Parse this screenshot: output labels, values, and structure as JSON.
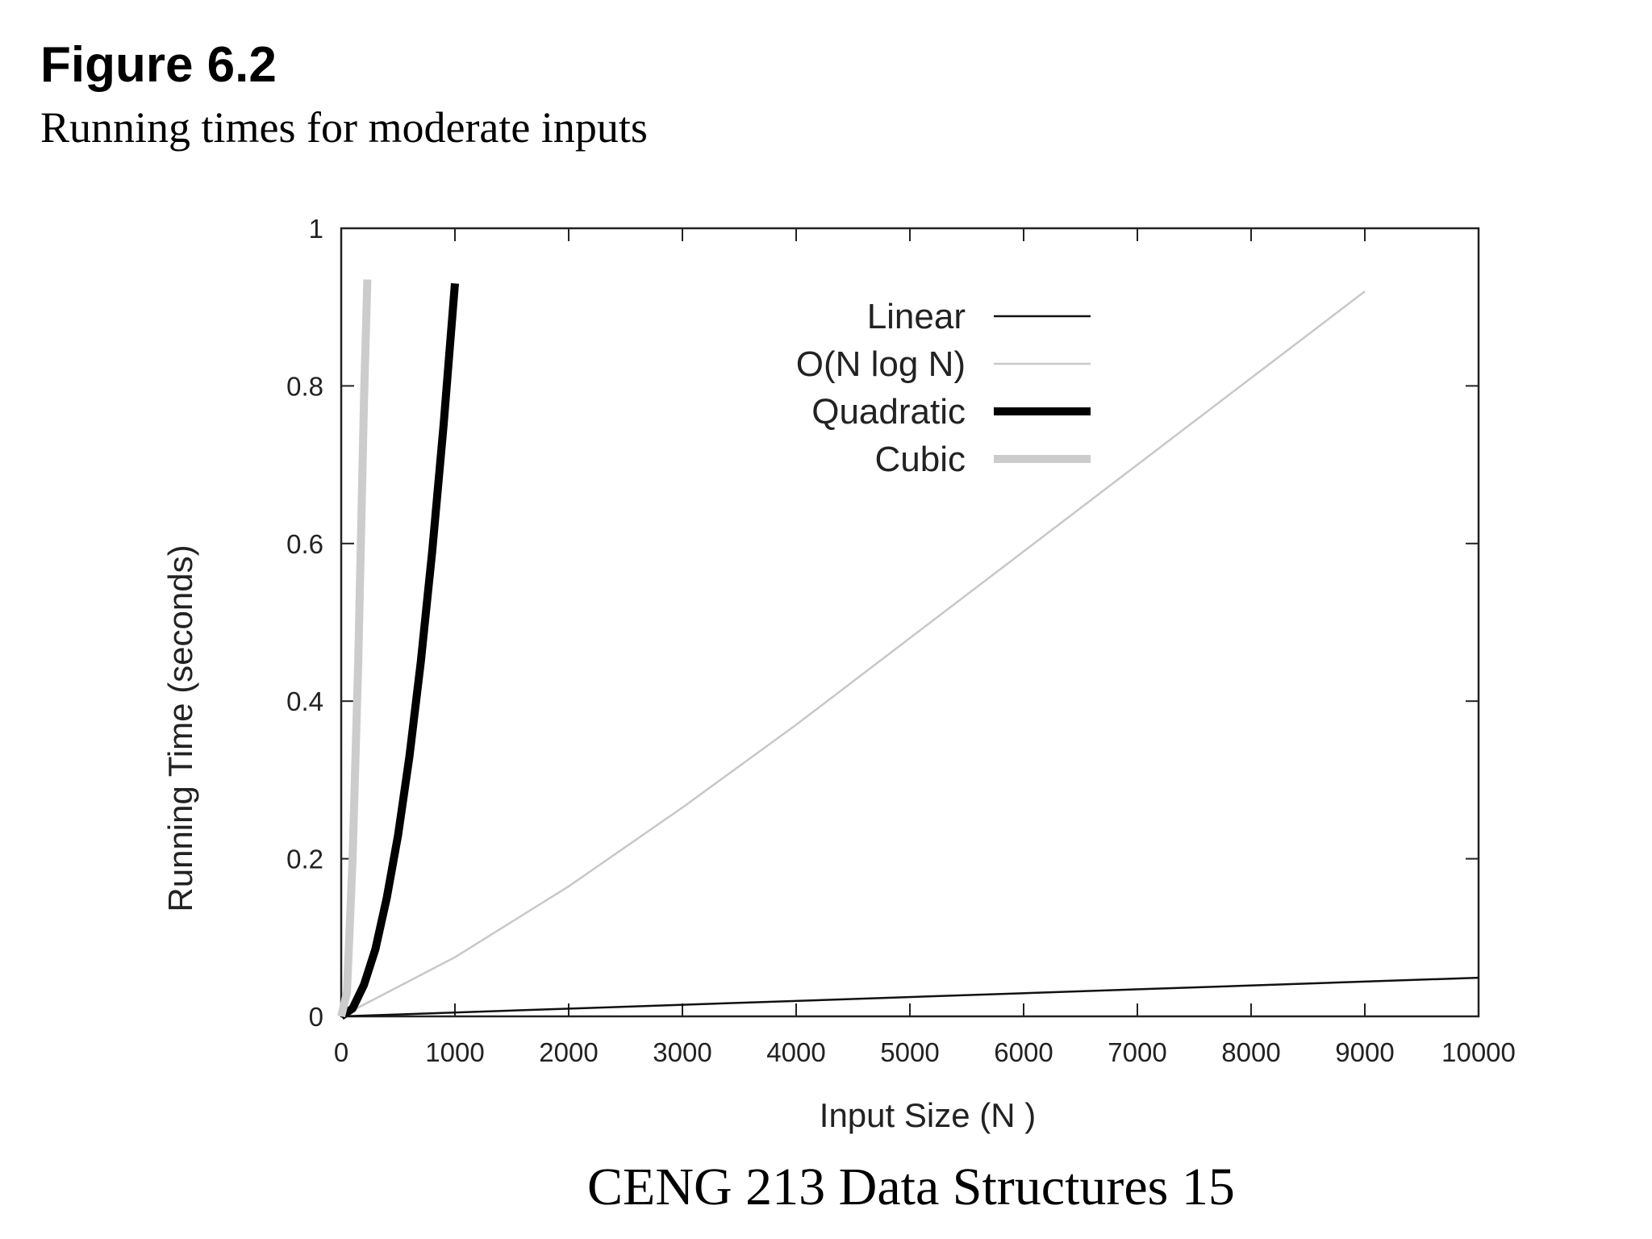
{
  "figure": {
    "number_label": "Figure 6.2",
    "caption": "Running times for moderate inputs"
  },
  "footer": {
    "text": "CENG 213 Data Structures 15"
  },
  "chart_data": {
    "type": "line",
    "title": "",
    "xlabel": "Input Size (N )",
    "ylabel": "Running Time (seconds)",
    "xlim": [
      0,
      10000
    ],
    "ylim": [
      0,
      1
    ],
    "x_ticks": [
      0,
      1000,
      2000,
      3000,
      4000,
      5000,
      6000,
      7000,
      8000,
      9000,
      10000
    ],
    "x_tick_labels": [
      "0",
      "1000",
      "2000",
      "3000",
      "4000",
      "5000",
      "6000",
      "7000",
      "8000",
      "9000",
      "10000"
    ],
    "y_ticks": [
      0,
      0.2,
      0.4,
      0.6,
      0.8,
      1
    ],
    "y_tick_labels": [
      "0",
      "0.2",
      "0.4",
      "0.6",
      "0.8",
      "1"
    ],
    "grid": false,
    "legend_position": "top-center",
    "series": [
      {
        "name": "Linear",
        "color": "#111111",
        "style": "thin",
        "x": [
          0,
          10000
        ],
        "y": [
          0,
          0.049
        ]
      },
      {
        "name": "O(N log N)",
        "color": "#c8c8c8",
        "style": "thin",
        "x": [
          0,
          1000,
          2000,
          3000,
          4000,
          5000,
          6000,
          7000,
          8000,
          9000
        ],
        "y": [
          0,
          0.075,
          0.165,
          0.265,
          0.37,
          0.48,
          0.59,
          0.7,
          0.81,
          0.92
        ]
      },
      {
        "name": "Quadratic",
        "color": "#000000",
        "style": "thick",
        "x": [
          0,
          100,
          200,
          300,
          400,
          500,
          600,
          700,
          800,
          900,
          1000
        ],
        "y": [
          0,
          0.01,
          0.04,
          0.085,
          0.15,
          0.23,
          0.33,
          0.45,
          0.59,
          0.75,
          0.93
        ]
      },
      {
        "name": "Cubic",
        "color": "#cccccc",
        "style": "thick",
        "x": [
          0,
          50,
          100,
          150,
          200,
          230
        ],
        "y": [
          0,
          0.03,
          0.2,
          0.45,
          0.78,
          0.935
        ]
      }
    ]
  }
}
